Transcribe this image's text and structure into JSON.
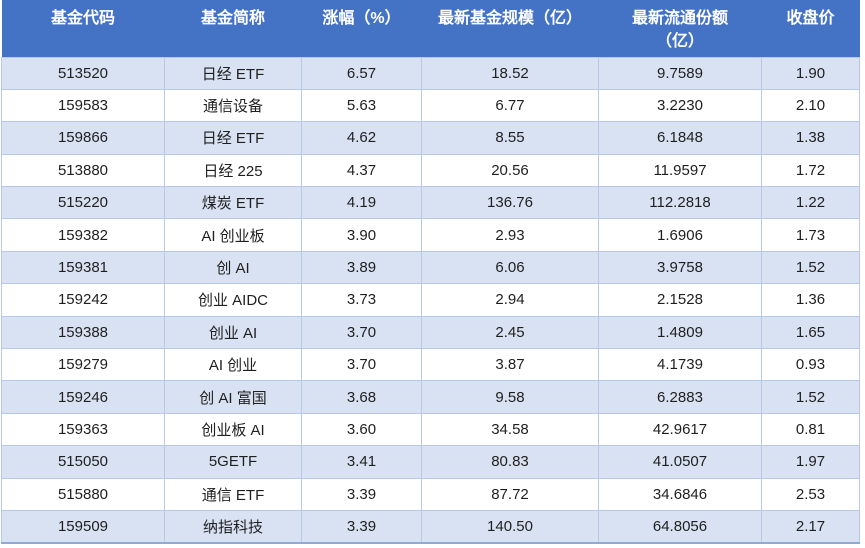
{
  "colors": {
    "header_bg": "#4472C4",
    "header_text": "#FFFFFF",
    "band_row_bg": "#D9E2F3",
    "plain_row_bg": "#FFFFFF",
    "grid_border": "#B7C8E8",
    "outer_bottom_border": "#8EAADB",
    "cell_text": "#1F1F1F"
  },
  "table": {
    "header": [
      {
        "line1": "基金代码",
        "line2": ""
      },
      {
        "line1": "基金简称",
        "line2": ""
      },
      {
        "line1": "涨幅（%）",
        "line2": ""
      },
      {
        "line1": "最新基金规模（亿）",
        "line2": ""
      },
      {
        "line1": "最新流通份额",
        "line2": "（亿）"
      },
      {
        "line1": "收盘价",
        "line2": ""
      }
    ]
  },
  "chart_data": {
    "type": "table",
    "columns": [
      "基金代码",
      "基金简称",
      "涨幅（%）",
      "最新基金规模（亿）",
      "最新流通份额（亿）",
      "收盘价"
    ],
    "column_keys": [
      "fund-code",
      "fund-name",
      "change-pct",
      "fund-size",
      "circulating-shares",
      "close-price"
    ],
    "rows": [
      [
        "513520",
        "日经 ETF",
        "6.57",
        "18.52",
        "9.7589",
        "1.90"
      ],
      [
        "159583",
        "通信设备",
        "5.63",
        "6.77",
        "3.2230",
        "2.10"
      ],
      [
        "159866",
        "日经 ETF",
        "4.62",
        "8.55",
        "6.1848",
        "1.38"
      ],
      [
        "513880",
        "日经 225",
        "4.37",
        "20.56",
        "11.9597",
        "1.72"
      ],
      [
        "515220",
        "煤炭 ETF",
        "4.19",
        "136.76",
        "112.2818",
        "1.22"
      ],
      [
        "159382",
        "AI 创业板",
        "3.90",
        "2.93",
        "1.6906",
        "1.73"
      ],
      [
        "159381",
        "创 AI",
        "3.89",
        "6.06",
        "3.9758",
        "1.52"
      ],
      [
        "159242",
        "创业 AIDC",
        "3.73",
        "2.94",
        "2.1528",
        "1.36"
      ],
      [
        "159388",
        "创业 AI",
        "3.70",
        "2.45",
        "1.4809",
        "1.65"
      ],
      [
        "159279",
        "AI 创业",
        "3.70",
        "3.87",
        "4.1739",
        "0.93"
      ],
      [
        "159246",
        "创 AI 富国",
        "3.68",
        "9.58",
        "6.2883",
        "1.52"
      ],
      [
        "159363",
        "创业板 AI",
        "3.60",
        "34.58",
        "42.9617",
        "0.81"
      ],
      [
        "515050",
        "5GETF",
        "3.41",
        "80.83",
        "41.0507",
        "1.97"
      ],
      [
        "515880",
        "通信 ETF",
        "3.39",
        "87.72",
        "34.6846",
        "2.53"
      ],
      [
        "159509",
        "纳指科技",
        "3.39",
        "140.50",
        "64.8056",
        "2.17"
      ]
    ]
  }
}
